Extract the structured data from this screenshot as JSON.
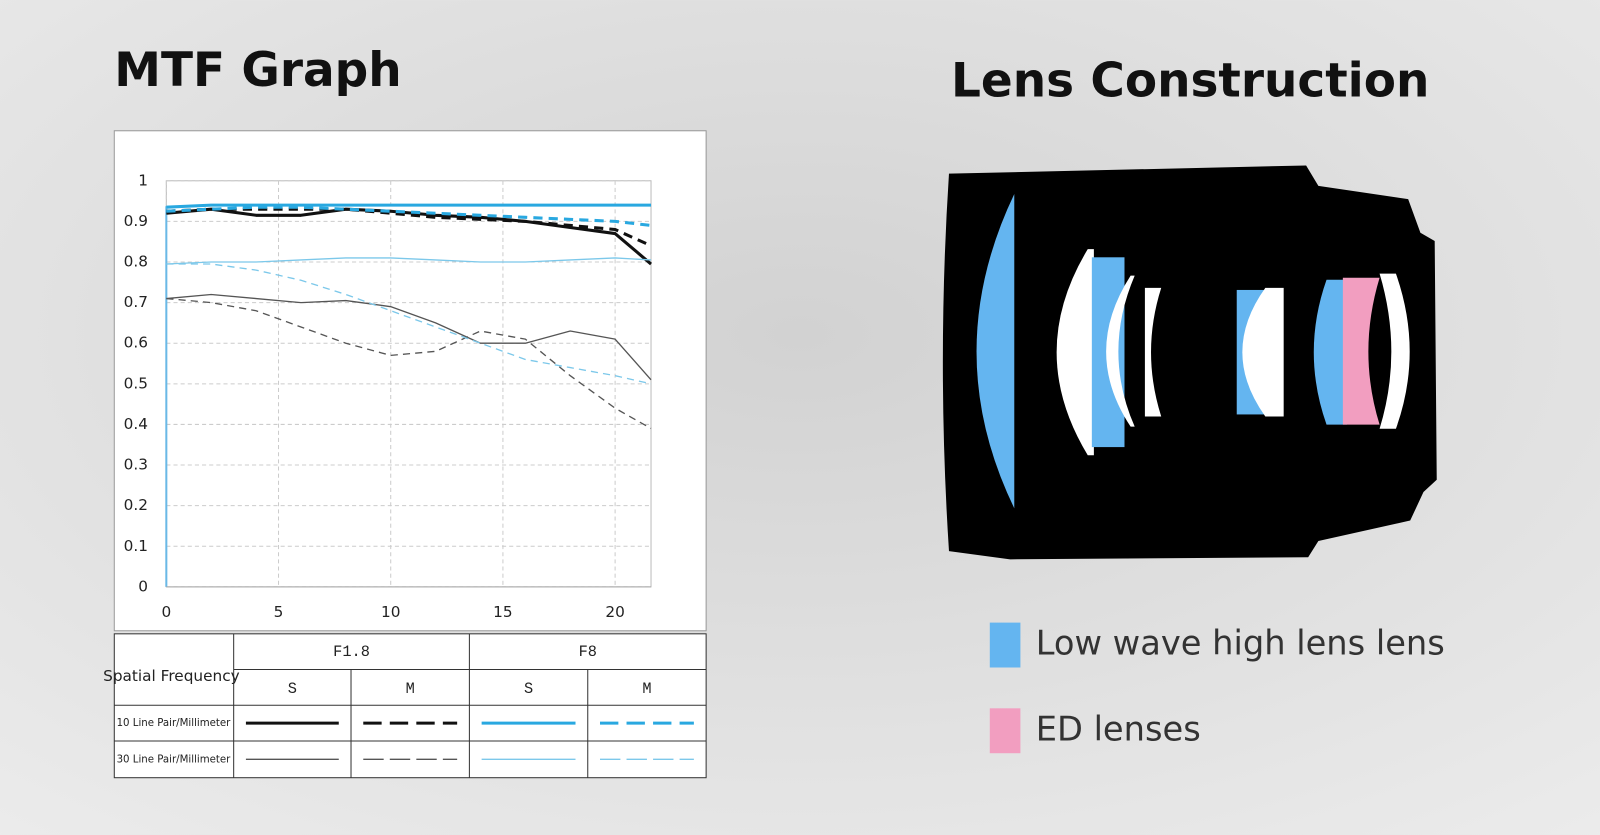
{
  "page": {
    "title": "MTF Graph",
    "lens_title": "Lens Construction",
    "lens_legend": [
      {
        "label": "Low wave high lens lens",
        "color": "#64b5f0"
      },
      {
        "label": "ED lenses",
        "color": "#f29ec0"
      }
    ]
  },
  "chart_data": {
    "type": "line",
    "x": [
      0,
      2,
      4,
      6,
      8,
      10,
      12,
      14,
      16,
      18,
      20,
      21.6
    ],
    "xlim": [
      0,
      21.6
    ],
    "xticks": [
      0,
      5,
      10,
      15,
      20
    ],
    "ylim": [
      0,
      1
    ],
    "yticks": [
      0,
      0.1,
      0.2,
      0.3,
      0.4,
      0.5,
      0.6,
      0.7,
      0.8,
      0.9,
      1
    ],
    "grid": true,
    "series": [
      {
        "color": "#111111",
        "width": 3,
        "dashed": false,
        "values": [
          0.92,
          0.93,
          0.915,
          0.915,
          0.93,
          0.925,
          0.915,
          0.91,
          0.9,
          0.885,
          0.87,
          0.795
        ]
      },
      {
        "color": "#111111",
        "width": 3,
        "dashed": true,
        "values": [
          0.925,
          0.93,
          0.93,
          0.93,
          0.93,
          0.92,
          0.91,
          0.905,
          0.9,
          0.89,
          0.88,
          0.84
        ]
      },
      {
        "color": "#29a8e0",
        "width": 3,
        "dashed": false,
        "values": [
          0.935,
          0.94,
          0.94,
          0.94,
          0.94,
          0.94,
          0.94,
          0.94,
          0.94,
          0.94,
          0.94,
          0.94
        ]
      },
      {
        "color": "#29a8e0",
        "width": 3,
        "dashed": true,
        "values": [
          0.925,
          0.93,
          0.935,
          0.935,
          0.93,
          0.925,
          0.92,
          0.915,
          0.91,
          0.905,
          0.9,
          0.89
        ]
      },
      {
        "color": "#555555",
        "width": 1.3,
        "dashed": false,
        "values": [
          0.71,
          0.72,
          0.71,
          0.7,
          0.705,
          0.69,
          0.65,
          0.6,
          0.6,
          0.63,
          0.61,
          0.51
        ]
      },
      {
        "color": "#555555",
        "width": 1.3,
        "dashed": true,
        "values": [
          0.71,
          0.7,
          0.68,
          0.64,
          0.6,
          0.57,
          0.58,
          0.63,
          0.61,
          0.52,
          0.44,
          0.39
        ]
      },
      {
        "color": "#7cc8ea",
        "width": 1.3,
        "dashed": false,
        "values": [
          0.795,
          0.8,
          0.8,
          0.805,
          0.81,
          0.81,
          0.805,
          0.8,
          0.8,
          0.805,
          0.81,
          0.805
        ]
      },
      {
        "color": "#7cc8ea",
        "width": 1.3,
        "dashed": true,
        "values": [
          0.795,
          0.795,
          0.78,
          0.755,
          0.72,
          0.68,
          0.64,
          0.6,
          0.56,
          0.54,
          0.52,
          0.5
        ]
      }
    ],
    "legend_table": {
      "corner": "Spatial Frequency",
      "apertures": [
        "F1.8",
        "F8"
      ],
      "positions": [
        "S",
        "M",
        "S",
        "M"
      ],
      "rows": [
        "10 Line Pair/Millimeter",
        "30 Line Pair/Millimeter"
      ]
    }
  }
}
